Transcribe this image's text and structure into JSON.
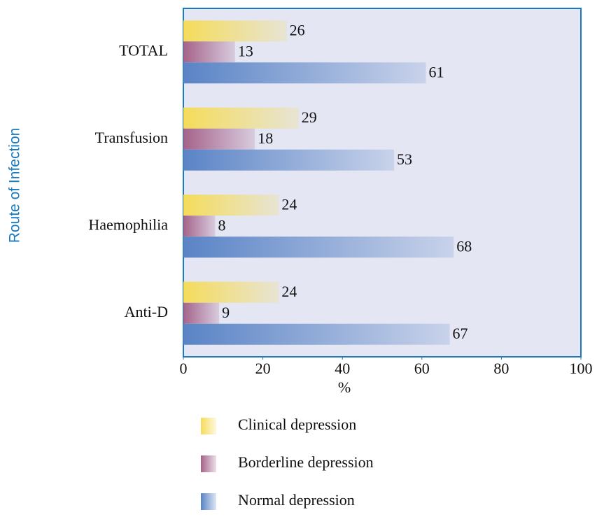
{
  "chart_data": {
    "type": "bar",
    "orientation": "horizontal",
    "y_axis_label": "Route of Infection",
    "x_axis_label": "%",
    "categories": [
      "TOTAL",
      "Transfusion",
      "Haemophilia",
      "Anti-D"
    ],
    "series": [
      {
        "name": "Clinical depression",
        "color": "#f5dc5a",
        "values": [
          26,
          29,
          24,
          24
        ]
      },
      {
        "name": "Borderline depression",
        "color": "#a5638a",
        "values": [
          13,
          18,
          8,
          9
        ]
      },
      {
        "name": "Normal depression",
        "color": "#5a84c6",
        "values": [
          61,
          53,
          68,
          67
        ]
      }
    ],
    "xlim": [
      0,
      100
    ],
    "xticks": [
      0,
      20,
      40,
      60,
      80,
      100
    ]
  }
}
